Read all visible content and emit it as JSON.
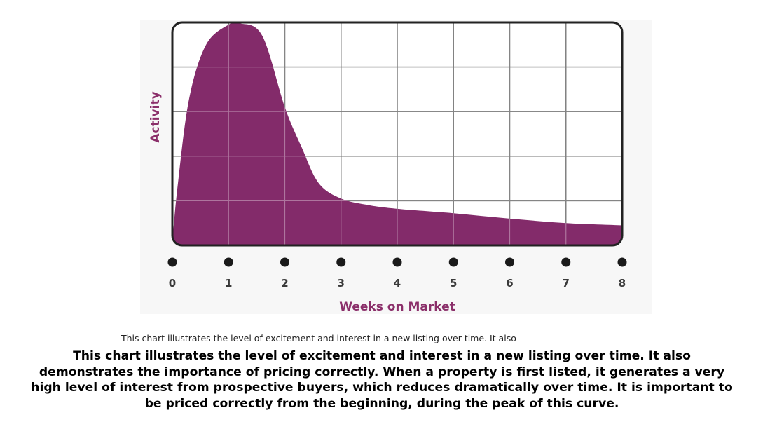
{
  "chart_data": {
    "type": "area",
    "title": "",
    "xlabel": "Weeks on Market",
    "ylabel": "Activity",
    "x_ticks": [
      "0",
      "1",
      "2",
      "3",
      "4",
      "5",
      "6",
      "7",
      "8"
    ],
    "xlim": [
      0,
      8
    ],
    "ylim": [
      0,
      5
    ],
    "grid": true,
    "x": [
      0,
      0.1,
      0.3,
      0.6,
      1.0,
      1.2,
      1.6,
      2.0,
      2.3,
      2.6,
      3.0,
      3.5,
      4.0,
      5.0,
      6.0,
      7.0,
      8.0
    ],
    "values": [
      0.1,
      1.4,
      3.3,
      4.5,
      4.95,
      4.98,
      4.7,
      3.1,
      2.2,
      1.4,
      1.05,
      0.9,
      0.82,
      0.72,
      0.6,
      0.5,
      0.45
    ],
    "fill_color": "#832b6a",
    "grid_color": "#444444",
    "dot_color": "#1a1a1a",
    "label_color": "#8b2f6a"
  },
  "captions": {
    "small": "This chart illustrates the level of excitement and interest in a new listing over time. It also",
    "main": "This chart illustrates the level of excitement and interest in a new listing over time. It also demonstrates the importance of pricing correctly. When a property is first listed, it generates a very high level of interest from prospective buyers, which reduces dramatically over time. It is important to be priced correctly from the beginning, during the peak of this curve."
  }
}
